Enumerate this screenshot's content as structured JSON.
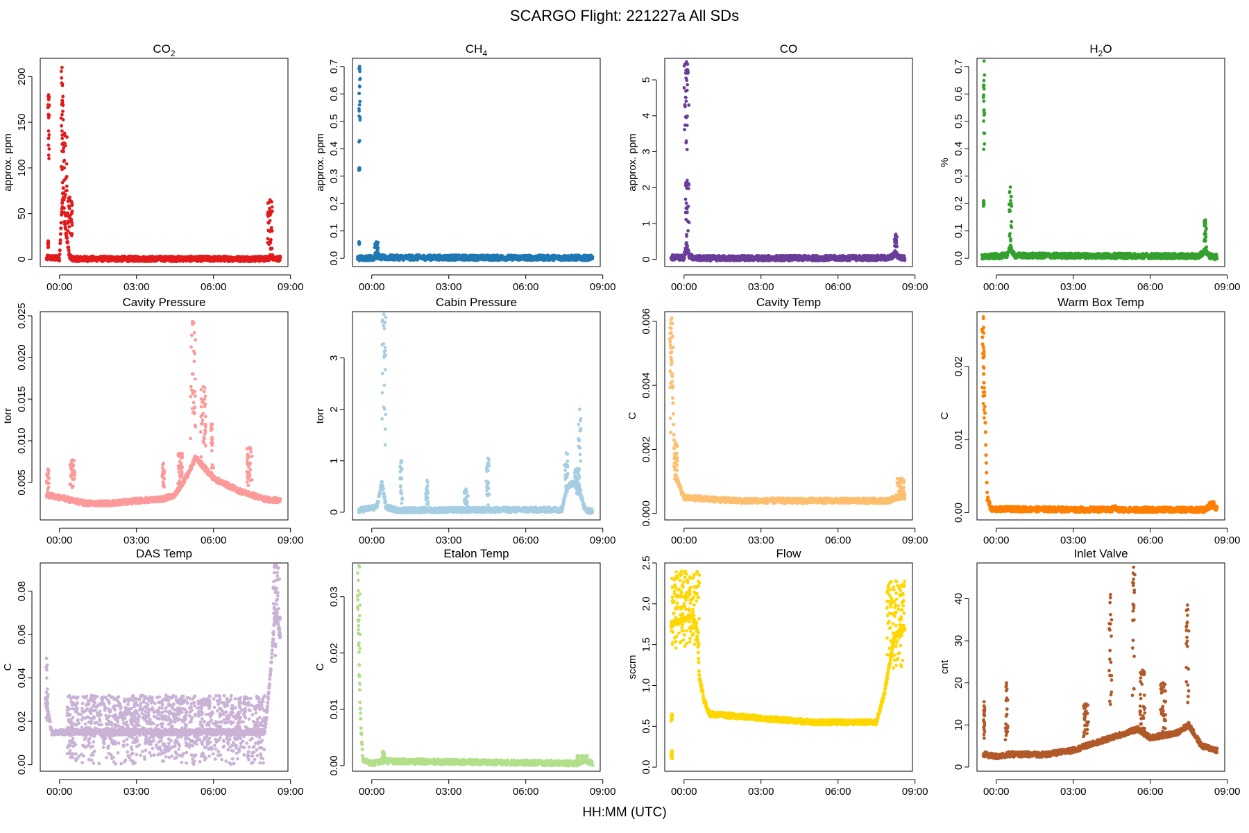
{
  "figure": {
    "title": "SCARGO Flight: 221227a  All SDs",
    "xlabel": "HH:MM (UTC)"
  },
  "chart_data": [
    {
      "type": "scatter",
      "id": "co2",
      "title": "CO",
      "title_sub": "2",
      "ylabel": "approx. ppm",
      "color": "#e31a1c",
      "xticks": [
        "00:00",
        "03:00",
        "06:00",
        "09:00"
      ],
      "xlim_hours": [
        -0.75,
        8.9
      ],
      "yticks": [
        0,
        50,
        100,
        150,
        200
      ],
      "ylim": [
        -8,
        220
      ],
      "profile": [
        [
          -0.5,
          0.5
        ],
        [
          -0.45,
          2
        ],
        [
          0.0,
          0.8
        ],
        [
          0.1,
          60
        ],
        [
          0.15,
          80
        ],
        [
          0.2,
          40
        ],
        [
          0.3,
          20
        ],
        [
          0.4,
          2
        ],
        [
          0.5,
          0.5
        ],
        [
          8.1,
          0.5
        ],
        [
          8.25,
          3
        ],
        [
          8.4,
          1
        ],
        [
          8.6,
          0.5
        ]
      ],
      "spikes": [
        [
          -0.45,
          -0.4,
          100,
          180
        ],
        [
          -0.45,
          -0.43,
          12,
          20
        ],
        [
          0.05,
          0.15,
          100,
          210
        ],
        [
          0.1,
          0.3,
          30,
          138
        ],
        [
          0.3,
          0.5,
          20,
          68
        ],
        [
          8.1,
          8.3,
          10,
          65
        ]
      ]
    },
    {
      "type": "scatter",
      "id": "ch4",
      "title": "CH",
      "title_sub": "4",
      "ylabel": "approx. ppm",
      "color": "#1f78b4",
      "xticks": [
        "00:00",
        "03:00",
        "06:00",
        "09:00"
      ],
      "xlim_hours": [
        -0.75,
        8.9
      ],
      "yticks": [
        0.0,
        0.1,
        0.2,
        0.3,
        0.4,
        0.5,
        0.6,
        0.7
      ],
      "ylim": [
        -0.03,
        0.73
      ],
      "profile": [
        [
          -0.55,
          0.001
        ],
        [
          0.1,
          0.002
        ],
        [
          0.2,
          0.01
        ],
        [
          0.35,
          0.003
        ],
        [
          8.6,
          0.002
        ]
      ],
      "spikes": [
        [
          -0.5,
          -0.45,
          0.42,
          0.7
        ],
        [
          -0.5,
          -0.47,
          0.32,
          0.33
        ],
        [
          -0.5,
          -0.48,
          0.05,
          0.06
        ],
        [
          0.1,
          0.25,
          0.01,
          0.06
        ]
      ]
    },
    {
      "type": "scatter",
      "id": "co",
      "title": "CO",
      "title_sub": "",
      "ylabel": "approx. ppm",
      "color": "#6a3d9a",
      "xticks": [
        "00:00",
        "03:00",
        "06:00",
        "09:00"
      ],
      "xlim_hours": [
        -0.75,
        8.9
      ],
      "yticks": [
        0,
        1,
        2,
        3,
        4,
        5
      ],
      "ylim": [
        -0.2,
        5.6
      ],
      "profile": [
        [
          -0.5,
          0.05
        ],
        [
          0.0,
          0.05
        ],
        [
          0.1,
          0.4
        ],
        [
          0.2,
          0.1
        ],
        [
          0.4,
          0.03
        ],
        [
          8.0,
          0.04
        ],
        [
          8.25,
          0.15
        ],
        [
          8.4,
          0.05
        ],
        [
          8.6,
          0.03
        ]
      ],
      "spikes": [
        [
          0.0,
          0.2,
          3.0,
          5.5
        ],
        [
          0.05,
          0.2,
          0.5,
          2.2
        ],
        [
          8.2,
          8.3,
          0.1,
          0.7
        ],
        [
          -0.45,
          -0.4,
          0.02,
          0.12
        ]
      ]
    },
    {
      "type": "scatter",
      "id": "h2o",
      "title": "H",
      "title_sub": "2",
      "title_tail": "O",
      "ylabel": "%",
      "color": "#33a02c",
      "xticks": [
        "00:00",
        "03:00",
        "06:00",
        "09:00"
      ],
      "xlim_hours": [
        -0.75,
        8.9
      ],
      "yticks": [
        0.0,
        0.1,
        0.2,
        0.3,
        0.4,
        0.5,
        0.6,
        0.7
      ],
      "ylim": [
        -0.03,
        0.73
      ],
      "profile": [
        [
          -0.55,
          0.005
        ],
        [
          0.4,
          0.01
        ],
        [
          0.55,
          0.04
        ],
        [
          0.7,
          0.01
        ],
        [
          7.9,
          0.008
        ],
        [
          8.15,
          0.03
        ],
        [
          8.3,
          0.008
        ],
        [
          8.6,
          0.005
        ]
      ],
      "spikes": [
        [
          -0.5,
          -0.45,
          0.38,
          0.72
        ],
        [
          -0.5,
          -0.48,
          0.19,
          0.21
        ],
        [
          0.5,
          0.6,
          0.05,
          0.26
        ],
        [
          8.1,
          8.2,
          0.02,
          0.14
        ]
      ]
    },
    {
      "type": "scatter",
      "id": "cavity_pressure",
      "title": "Cavity Pressure",
      "ylabel": "torr",
      "color": "#fb9a99",
      "xticks": [
        "00:00",
        "03:00",
        "06:00",
        "09:00"
      ],
      "xlim_hours": [
        -0.75,
        8.9
      ],
      "yticks": [
        0.005,
        0.01,
        0.015,
        0.02,
        0.025
      ],
      "ylim": [
        0.0005,
        0.0255
      ],
      "profile": [
        [
          -0.5,
          0.0035
        ],
        [
          0.0,
          0.0032
        ],
        [
          1.0,
          0.0025
        ],
        [
          2.0,
          0.0025
        ],
        [
          3.0,
          0.0028
        ],
        [
          4.0,
          0.003
        ],
        [
          4.5,
          0.0035
        ],
        [
          5.0,
          0.006
        ],
        [
          5.3,
          0.008
        ],
        [
          6.0,
          0.0055
        ],
        [
          7.0,
          0.004
        ],
        [
          8.0,
          0.003
        ],
        [
          8.6,
          0.0028
        ]
      ],
      "spikes": [
        [
          5.1,
          5.3,
          0.01,
          0.0243
        ],
        [
          5.5,
          5.7,
          0.008,
          0.0165
        ],
        [
          5.9,
          6.0,
          0.006,
          0.012
        ],
        [
          7.3,
          7.5,
          0.004,
          0.0092
        ],
        [
          0.4,
          0.6,
          0.004,
          0.0077
        ],
        [
          -0.5,
          -0.4,
          0.004,
          0.0066
        ],
        [
          4.0,
          4.1,
          0.004,
          0.0073
        ],
        [
          4.6,
          4.8,
          0.004,
          0.0085
        ]
      ]
    },
    {
      "type": "scatter",
      "id": "cabin_pressure",
      "title": "Cabin Pressure",
      "ylabel": "torr",
      "color": "#a6cee3",
      "xticks": [
        "00:00",
        "03:00",
        "06:00",
        "09:00"
      ],
      "xlim_hours": [
        -0.75,
        8.9
      ],
      "yticks": [
        0,
        1,
        2,
        3
      ],
      "ylim": [
        -0.15,
        3.9
      ],
      "profile": [
        [
          -0.5,
          0.04
        ],
        [
          0.2,
          0.1
        ],
        [
          0.4,
          0.6
        ],
        [
          0.55,
          0.1
        ],
        [
          1.0,
          0.04
        ],
        [
          7.4,
          0.05
        ],
        [
          7.6,
          0.5
        ],
        [
          8.0,
          0.6
        ],
        [
          8.3,
          0.05
        ],
        [
          8.6,
          0.02
        ]
      ],
      "spikes": [
        [
          0.4,
          0.55,
          1.2,
          3.85
        ],
        [
          1.1,
          1.2,
          0.1,
          1.0
        ],
        [
          2.1,
          2.2,
          0.1,
          0.62
        ],
        [
          3.6,
          3.75,
          0.1,
          0.45
        ],
        [
          4.45,
          4.6,
          0.1,
          1.05
        ],
        [
          7.5,
          7.65,
          0.3,
          1.15
        ],
        [
          7.9,
          8.1,
          0.3,
          0.85
        ],
        [
          8.05,
          8.15,
          0.3,
          2.0
        ]
      ]
    },
    {
      "type": "scatter",
      "id": "cavity_temp",
      "title": "Cavity Temp",
      "ylabel": "C",
      "color": "#fdbf6f",
      "xticks": [
        "00:00",
        "03:00",
        "06:00",
        "09:00"
      ],
      "xlim_hours": [
        -0.75,
        8.9
      ],
      "yticks": [
        0.0,
        0.002,
        0.004,
        0.006
      ],
      "ylim": [
        -0.0002,
        0.0063
      ],
      "profile": [
        [
          -0.55,
          0.0055
        ],
        [
          -0.45,
          0.004
        ],
        [
          -0.35,
          0.0012
        ],
        [
          0.0,
          0.0005
        ],
        [
          2.0,
          0.0004
        ],
        [
          5.0,
          0.0004
        ],
        [
          8.0,
          0.0004
        ],
        [
          8.5,
          0.0006
        ],
        [
          8.6,
          0.0005
        ]
      ],
      "spikes": [
        [
          -0.55,
          -0.4,
          0.002,
          0.0061
        ],
        [
          -0.4,
          -0.25,
          0.0008,
          0.0022
        ],
        [
          8.3,
          8.6,
          0.0004,
          0.0011
        ]
      ]
    },
    {
      "type": "scatter",
      "id": "warm_box_temp",
      "title": "Warm Box Temp",
      "ylabel": "C",
      "color": "#ff7f00",
      "xticks": [
        "00:00",
        "03:00",
        "06:00",
        "09:00"
      ],
      "xlim_hours": [
        -0.75,
        8.9
      ],
      "yticks": [
        0.0,
        0.01,
        0.02
      ],
      "ylim": [
        -0.001,
        0.0275
      ],
      "profile": [
        [
          -0.55,
          0.025
        ],
        [
          -0.45,
          0.015
        ],
        [
          -0.35,
          0.002
        ],
        [
          -0.2,
          0.0005
        ],
        [
          4.5,
          0.0004
        ],
        [
          4.6,
          0.0008
        ],
        [
          4.7,
          0.0004
        ],
        [
          8.1,
          0.0004
        ],
        [
          8.4,
          0.001
        ],
        [
          8.6,
          0.0005
        ]
      ],
      "spikes": [
        [
          -0.55,
          -0.45,
          0.012,
          0.0268
        ],
        [
          8.3,
          8.5,
          0.0005,
          0.0015
        ]
      ]
    },
    {
      "type": "scatter",
      "id": "das_temp",
      "title": "DAS Temp",
      "ylabel": "C",
      "color": "#cab2d6",
      "xticks": [
        "00:00",
        "03:00",
        "06:00",
        "09:00"
      ],
      "xlim_hours": [
        -0.75,
        8.9
      ],
      "yticks": [
        0.0,
        0.02,
        0.04,
        0.06,
        0.08
      ],
      "ylim": [
        -0.003,
        0.093
      ],
      "profile": [
        [
          -0.55,
          0.03
        ],
        [
          -0.3,
          0.015
        ],
        [
          0.5,
          0.015
        ],
        [
          4.0,
          0.015
        ],
        [
          8.0,
          0.015
        ],
        [
          8.2,
          0.04
        ],
        [
          8.4,
          0.07
        ],
        [
          8.6,
          0.06
        ]
      ],
      "spikes": [
        [
          -0.55,
          -0.45,
          0.02,
          0.049
        ],
        [
          8.3,
          8.6,
          0.05,
          0.092
        ],
        [
          0.3,
          8.0,
          0.0,
          0.032
        ]
      ]
    },
    {
      "type": "scatter",
      "id": "etalon_temp",
      "title": "Etalon Temp",
      "ylabel": "C",
      "color": "#b2df8a",
      "xticks": [
        "00:00",
        "03:00",
        "06:00",
        "09:00"
      ],
      "xlim_hours": [
        -0.75,
        8.9
      ],
      "yticks": [
        0.0,
        0.01,
        0.02,
        0.03
      ],
      "ylim": [
        -0.001,
        0.036
      ],
      "profile": [
        [
          -0.55,
          0.03
        ],
        [
          -0.45,
          0.01
        ],
        [
          -0.35,
          0.001
        ],
        [
          0.0,
          0.0004
        ],
        [
          0.5,
          0.0008
        ],
        [
          8.0,
          0.0004
        ],
        [
          8.3,
          0.001
        ],
        [
          8.6,
          0.0003
        ]
      ],
      "spikes": [
        [
          -0.55,
          -0.45,
          0.01,
          0.0355
        ],
        [
          0.4,
          0.5,
          0.0005,
          0.0025
        ],
        [
          8.0,
          8.4,
          0.0003,
          0.0018
        ]
      ]
    },
    {
      "type": "scatter",
      "id": "flow",
      "title": "Flow",
      "ylabel": "sccm",
      "color": "#ffd700",
      "xticks": [
        "00:00",
        "03:00",
        "06:00",
        "09:00"
      ],
      "xlim_hours": [
        -0.75,
        8.9
      ],
      "yticks": [
        0.0,
        0.5,
        1.0,
        1.5,
        2.0,
        2.5
      ],
      "ylim": [
        -0.05,
        2.5
      ],
      "profile": [
        [
          -0.5,
          1.75
        ],
        [
          0.3,
          1.85
        ],
        [
          0.5,
          1.7
        ],
        [
          0.6,
          1.1
        ],
        [
          0.8,
          0.8
        ],
        [
          1.0,
          0.65
        ],
        [
          3.0,
          0.6
        ],
        [
          5.0,
          0.55
        ],
        [
          7.5,
          0.55
        ],
        [
          7.8,
          0.9
        ],
        [
          8.2,
          1.6
        ],
        [
          8.6,
          1.7
        ]
      ],
      "spikes": [
        [
          -0.5,
          0.6,
          1.4,
          2.4
        ],
        [
          7.9,
          8.6,
          1.2,
          2.28
        ],
        [
          -0.5,
          -0.45,
          0.1,
          0.2
        ],
        [
          -0.5,
          -0.45,
          0.55,
          0.65
        ]
      ]
    },
    {
      "type": "scatter",
      "id": "inlet_valve",
      "title": "Inlet Valve",
      "ylabel": "cnt",
      "color": "#b15928",
      "xticks": [
        "00:00",
        "03:00",
        "06:00",
        "09:00"
      ],
      "xlim_hours": [
        -0.75,
        8.9
      ],
      "yticks": [
        0,
        10,
        20,
        30,
        40
      ],
      "ylim": [
        -1,
        48.5
      ],
      "profile": [
        [
          -0.5,
          3
        ],
        [
          0.0,
          2.5
        ],
        [
          0.5,
          3
        ],
        [
          1.0,
          3
        ],
        [
          2.0,
          3
        ],
        [
          3.0,
          4
        ],
        [
          4.0,
          6
        ],
        [
          4.5,
          7
        ],
        [
          5.0,
          8
        ],
        [
          5.5,
          9
        ],
        [
          6.0,
          7
        ],
        [
          7.0,
          8
        ],
        [
          7.5,
          10
        ],
        [
          8.0,
          5
        ],
        [
          8.6,
          4
        ]
      ],
      "spikes": [
        [
          -0.5,
          -0.45,
          5,
          15.5
        ],
        [
          0.35,
          0.45,
          5,
          20
        ],
        [
          4.4,
          4.5,
          10,
          41
        ],
        [
          5.3,
          5.4,
          10,
          47.5
        ],
        [
          7.4,
          7.5,
          10,
          38.5
        ],
        [
          5.6,
          5.8,
          8,
          23
        ],
        [
          6.4,
          6.6,
          8,
          20
        ],
        [
          3.4,
          3.6,
          5,
          15
        ]
      ]
    }
  ]
}
